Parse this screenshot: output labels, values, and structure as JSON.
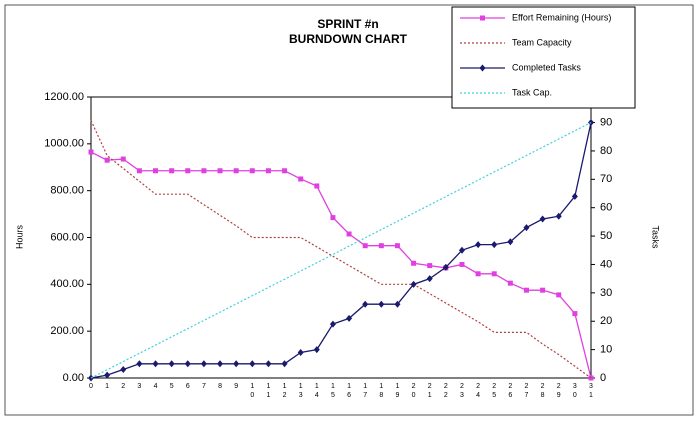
{
  "chart_data": {
    "type": "line",
    "title": "SPRINT #n",
    "subtitle": "BURNDOWN CHART",
    "y_label": "Hours",
    "y2_label": "Tasks",
    "categories": [
      "0",
      "1",
      "2",
      "3",
      "4",
      "5",
      "6",
      "7",
      "8",
      "9",
      "10",
      "11",
      "12",
      "13",
      "14",
      "15",
      "16",
      "17",
      "18",
      "19",
      "20",
      "21",
      "22",
      "23",
      "24",
      "25",
      "26",
      "27",
      "28",
      "29",
      "30",
      "31"
    ],
    "ylim": [
      0,
      1200
    ],
    "yticks": [
      {
        "value": 0,
        "label": "0.00"
      },
      {
        "value": 200,
        "label": "200.00"
      },
      {
        "value": 400,
        "label": "400.00"
      },
      {
        "value": 600,
        "label": "600.00"
      },
      {
        "value": 800,
        "label": "800.00"
      },
      {
        "value": 1000,
        "label": "1000.00"
      },
      {
        "value": 1200,
        "label": "1200.00"
      }
    ],
    "y2lim": [
      0,
      99
    ],
    "y2ticks": [
      0,
      10,
      20,
      30,
      40,
      50,
      60,
      70,
      80,
      90
    ],
    "legend": "top-right",
    "series": [
      {
        "name": "Effort Remaining (Hours)",
        "color": "#e040e0",
        "style": "solid",
        "marker": "square",
        "values": [
          965,
          930,
          935,
          885,
          885,
          885,
          885,
          885,
          885,
          885,
          885,
          885,
          885,
          850,
          820,
          685,
          615,
          565,
          565,
          565,
          490,
          480,
          470,
          485,
          445,
          445,
          405,
          375,
          375,
          355,
          275,
          0
        ]
      },
      {
        "name": "Team Capacity",
        "color": "#b04040",
        "style": "dotted",
        "marker": "none",
        "values": [
          1100,
          950,
          895,
          840,
          785,
          785,
          785,
          740,
          695,
          650,
          600,
          600,
          600,
          600,
          560,
          520,
          480,
          440,
          400,
          400,
          400,
          360,
          320,
          280,
          240,
          195,
          195,
          195,
          145,
          100,
          50,
          0
        ]
      },
      {
        "name": "Completed Tasks",
        "color": "#1a1a6e",
        "style": "solid",
        "marker": "diamond",
        "axis": "y2",
        "values": [
          0,
          1,
          3,
          5,
          5,
          5,
          5,
          5,
          5,
          5,
          5,
          5,
          5,
          9,
          10,
          19,
          21,
          26,
          26,
          26,
          33,
          35,
          39,
          45,
          47,
          47,
          48,
          53,
          56,
          57,
          64,
          90
        ]
      },
      {
        "name": "Task Cap.",
        "color": "#40d0e0",
        "style": "dotted",
        "marker": "none",
        "axis": "y2",
        "values": [
          0,
          2.9,
          5.8,
          8.7,
          11.6,
          14.5,
          17.4,
          20.3,
          23.2,
          26.1,
          29,
          31.9,
          34.8,
          37.7,
          40.6,
          43.5,
          46.5,
          49.4,
          52.3,
          55.2,
          58.1,
          61,
          63.9,
          66.8,
          69.7,
          72.6,
          75.5,
          78.4,
          81.3,
          84.2,
          87.1,
          90
        ]
      }
    ]
  }
}
